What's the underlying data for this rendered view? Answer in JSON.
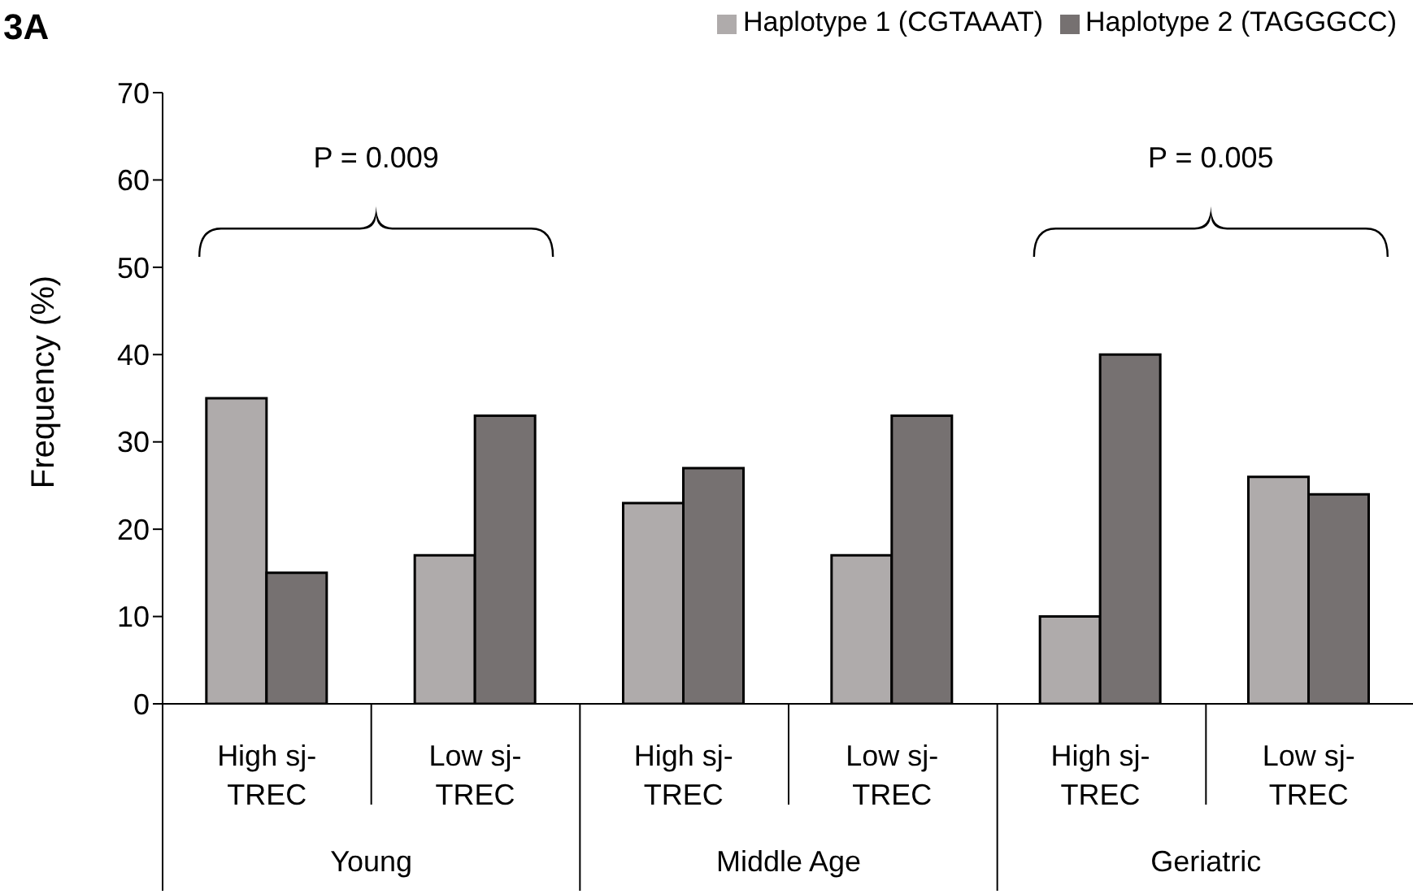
{
  "chart_data": {
    "type": "bar",
    "title": "3A",
    "ylabel": "Frequency (%)",
    "categories": [
      "High sj-TREC",
      "Low sj-TREC",
      "High sj-TREC",
      "Low sj-TREC",
      "High sj-TREC",
      "Low sj-TREC"
    ],
    "series": [
      {
        "name": "Haplotype 1 (CGTAAAT)",
        "color": "#afabab",
        "values": [
          35,
          17,
          23,
          17,
          10,
          26
        ]
      },
      {
        "name": "Haplotype 2 (TAGGGCC)",
        "color": "#767171",
        "values": [
          15,
          33,
          27,
          33,
          40,
          24
        ]
      }
    ],
    "ylim": [
      0,
      70
    ],
    "yticks": [
      0,
      10,
      20,
      30,
      40,
      50,
      60,
      70
    ],
    "grid": false,
    "legend": "top right",
    "annotations": [
      "P = 0.009",
      "P = 0.005",
      "Young",
      "Middle Age",
      "Geriatric"
    ]
  }
}
